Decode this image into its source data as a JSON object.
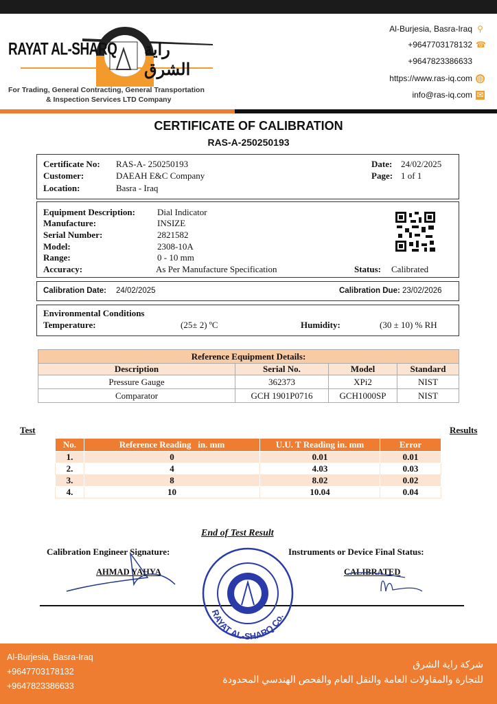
{
  "header": {
    "company_en": "RAYAT AL-SHARQ",
    "company_ar": "راية الشرق",
    "tagline_1": "For Trading, General Contracting, General Transportation",
    "tagline_2": "& Inspection Services LTD Company",
    "contacts": [
      {
        "text": "Al-Burjesia, Basra-Iraq",
        "icon": "location-pin-icon"
      },
      {
        "text": "+9647703178132",
        "icon": "telephone-icon"
      },
      {
        "text": "+9647823386633",
        "icon": ""
      },
      {
        "text": "https://www.ras-iq.com",
        "icon": "globe-icon"
      },
      {
        "text": "info@ras-iq.com",
        "icon": "envelope-icon"
      }
    ]
  },
  "title": "CERTIFICATE OF CALIBRATION",
  "subtitle": "RAS-A-250250193",
  "cert": {
    "no_label": "Certificate No:",
    "no": "RAS-A- 250250193",
    "customer_label": "Customer:",
    "customer": "DAEAH E&C Company",
    "location_label": "Location:",
    "location": "Basra - Iraq",
    "date_label": "Date:",
    "date": "24/02/2025",
    "page_label": "Page:",
    "page": "1 of 1"
  },
  "equipment": {
    "desc_label": "Equipment Description:",
    "desc": "Dial Indicator",
    "manu_label": "Manufacture:",
    "manu": "INSIZE",
    "serial_label": "Serial Number:",
    "serial": "2821582",
    "model_label": "Model:",
    "model": "2308-10A",
    "range_label": "Range:",
    "range": "0 - 10 mm",
    "accuracy_label": "Accuracy:",
    "accuracy": "As Per Manufacture Specification",
    "status_label": "Status:",
    "status": "Calibrated"
  },
  "calibration": {
    "date_label": "Calibration Date:",
    "date": "24/02/2025",
    "due_label": "Calibration Due:",
    "due": "23/02/2026"
  },
  "environment": {
    "heading": "Environmental Conditions",
    "temp_label": "Temperature:",
    "temp": "(25± 2) ºC",
    "hum_label": "Humidity:",
    "hum": "(30 ± 10) % RH"
  },
  "reference": {
    "title": "Reference Equipment Details:",
    "headers": [
      "Description",
      "Serial No.",
      "Model",
      "Standard"
    ],
    "rows": [
      [
        "Pressure Gauge",
        "362373",
        "XPi2",
        "NIST"
      ],
      [
        "Comparator",
        "GCH 1901P0716",
        "GCH1000SP",
        "NIST"
      ]
    ]
  },
  "results": {
    "left_label": "Test",
    "right_label": "Results",
    "headers": [
      "No.",
      "Reference Reading   in. mm",
      "U.U. T Reading in. mm",
      "Error"
    ],
    "rows": [
      [
        "1.",
        "0",
        "0.01",
        "0.01"
      ],
      [
        "2.",
        "4",
        "4.03",
        "0.03"
      ],
      [
        "3.",
        "8",
        "8.02",
        "0.02"
      ],
      [
        "4.",
        "10",
        "10.04",
        "0.04"
      ]
    ]
  },
  "end_text": "End of Test Result",
  "signature": {
    "engineer_label": "Calibration Engineer Signature:",
    "engineer": "AHMAD YAHYA",
    "status_label": "Instruments or Device Final Status:",
    "status": "CALIBRATED",
    "stamp_text": "RAYAT AL-SHARQ Co."
  },
  "footer": {
    "address": "Al-Burjesia, Basra-Iraq",
    "phone1": "+9647703178132",
    "phone2": "+9647823386633",
    "ar_1": "شركة راية الشرق",
    "ar_2": "للتجارة والمقاولات العامة والنقل العام والفحص الهندسي المحدودة"
  },
  "colors": {
    "orange": "#ee7d31",
    "light_orange": "#f8cba4",
    "band": "#fce4d2"
  }
}
